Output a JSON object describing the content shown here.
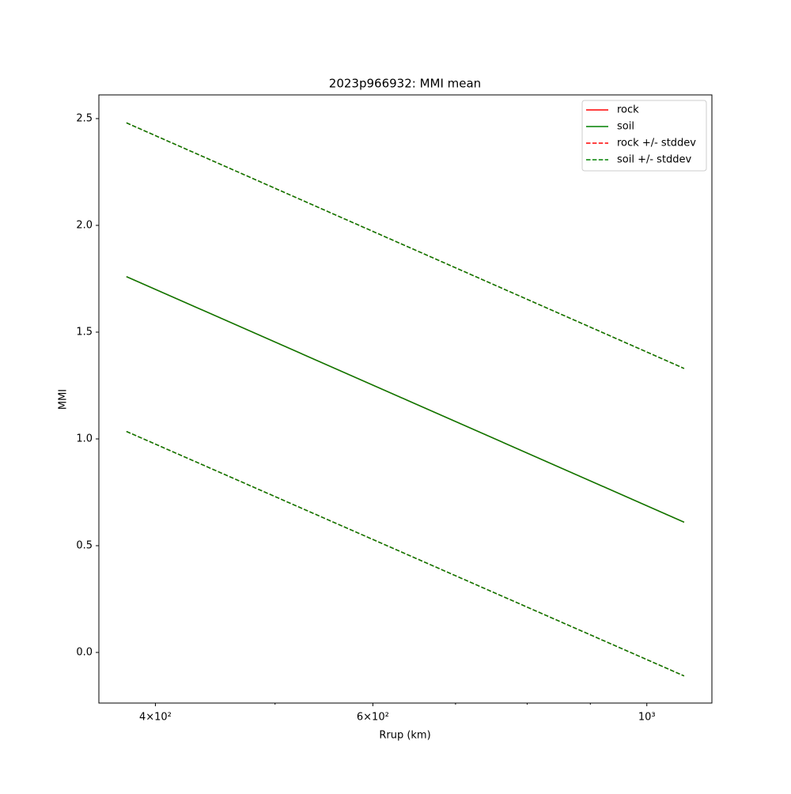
{
  "chart_data": {
    "type": "line",
    "title": "2023p966932: MMI mean",
    "xlabel": "Rrup (km)",
    "ylabel": "MMI",
    "xscale": "log",
    "x": [
      379,
      1072
    ],
    "series": [
      {
        "name": "rock",
        "color": "#ff0000",
        "style": "solid",
        "values": [
          1.76,
          0.61
        ]
      },
      {
        "name": "soil",
        "color": "#008000",
        "style": "solid",
        "values": [
          1.76,
          0.61
        ]
      },
      {
        "name": "rock +/- stddev",
        "color": "#ff0000",
        "style": "dashed",
        "upper": [
          2.48,
          1.33
        ],
        "lower": [
          1.035,
          -0.11
        ]
      },
      {
        "name": "soil +/- stddev",
        "color": "#008000",
        "style": "dashed",
        "upper": [
          2.48,
          1.33
        ],
        "lower": [
          1.035,
          -0.11
        ]
      }
    ],
    "xlim": [
      360,
      1129
    ],
    "ylim": [
      -0.237,
      2.611
    ],
    "xticks": [
      {
        "value": 400,
        "label": "4×10²"
      },
      {
        "value": 600,
        "label": "6×10²"
      },
      {
        "value": 1000,
        "label": "10³"
      }
    ],
    "xminorticks": [
      500,
      700,
      800,
      900
    ],
    "yticks": [
      {
        "value": 0,
        "label": "0.0"
      },
      0.5,
      {
        "value": 1,
        "label": "1.0"
      },
      1.5,
      {
        "value": 2,
        "label": "2.0"
      },
      2.5
    ],
    "legend": "upper right",
    "grid": false
  }
}
